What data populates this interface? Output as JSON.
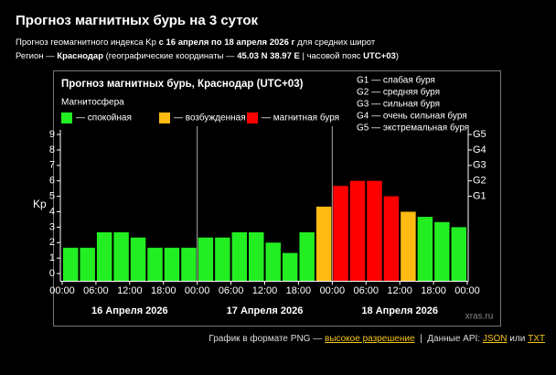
{
  "header": {
    "title": "Прогноз магнитных бурь на 3 суток",
    "line1": [
      "Прогноз геомагнитного индекса Kp ",
      "с 16 апреля по 18 апреля 2026 г",
      " для средних широт"
    ],
    "line2": [
      "Регион — ",
      "Краснодар",
      " (географические координаты — ",
      "45.03 N 38.97 E",
      " | часовой пояс ",
      "UTC+03",
      ")"
    ]
  },
  "chart_data": {
    "type": "bar",
    "title": "Прогноз магнитных бурь, Краснодар (UTC+03)",
    "legend_title": "Магнитосфера",
    "legend": [
      {
        "name": "— спокойная",
        "color": "#22ee22"
      },
      {
        "name": "— возбужденная",
        "color": "#ffbb11"
      },
      {
        "name": "— магнитная буря",
        "color": "#ff0000"
      }
    ],
    "g_legend": [
      "G1 — слабая буря",
      "G2 — средняя буря",
      "G3 — сильная буря",
      "G4 — очень сильная буря",
      "G5 — экстремальная буря"
    ],
    "y_label": "Kp",
    "x": [
      0,
      3,
      6,
      9,
      12,
      15,
      18,
      21,
      24,
      27,
      30,
      33,
      36,
      39,
      42,
      45,
      48,
      51,
      54,
      57,
      60,
      63,
      66,
      69
    ],
    "values": [
      1.67,
      1.67,
      2.67,
      2.67,
      2.33,
      1.67,
      1.67,
      1.67,
      2.33,
      2.33,
      2.67,
      2.67,
      2.0,
      1.33,
      2.67,
      4.33,
      5.67,
      6.0,
      6.0,
      5.0,
      4.0,
      3.67,
      3.33,
      3.0
    ],
    "colors": [
      "#22ee22",
      "#22ee22",
      "#22ee22",
      "#22ee22",
      "#22ee22",
      "#22ee22",
      "#22ee22",
      "#22ee22",
      "#22ee22",
      "#22ee22",
      "#22ee22",
      "#22ee22",
      "#22ee22",
      "#22ee22",
      "#22ee22",
      "#ffbb11",
      "#ff0000",
      "#ff0000",
      "#ff0000",
      "#ff0000",
      "#ffbb11",
      "#22ee22",
      "#22ee22",
      "#22ee22"
    ],
    "xlim": [
      0,
      72
    ],
    "xticks": [
      {
        "value": 0,
        "label": "00:00"
      },
      {
        "value": 6,
        "label": "06:00"
      },
      {
        "value": 12,
        "label": "12:00"
      },
      {
        "value": 18,
        "label": "18:00"
      },
      {
        "value": 24,
        "label": "00:00"
      },
      {
        "value": 30,
        "label": "06:00"
      },
      {
        "value": 36,
        "label": "12:00"
      },
      {
        "value": 42,
        "label": "18:00"
      },
      {
        "value": 48,
        "label": "00:00"
      },
      {
        "value": 54,
        "label": "06:00"
      },
      {
        "value": 60,
        "label": "12:00"
      },
      {
        "value": 66,
        "label": "18:00"
      },
      {
        "value": 72,
        "label": "00:00"
      }
    ],
    "days": [
      "16 Апреля 2026",
      "17 Апреля 2026",
      "18 Апреля 2026"
    ],
    "ylim": [
      -0.5,
      9.3
    ],
    "yticks": [
      0,
      1,
      2,
      3,
      4,
      5,
      6,
      7,
      8,
      9
    ],
    "y2lim": [
      -0.5,
      9.3
    ],
    "y2ticks": [
      {
        "value": 5,
        "label": "G1"
      },
      {
        "value": 6,
        "label": "G2"
      },
      {
        "value": 7,
        "label": "G3"
      },
      {
        "value": 8,
        "label": "G4"
      },
      {
        "value": 9,
        "label": "G5"
      }
    ],
    "watermark": "xras.ru"
  },
  "footer": {
    "text1": "График в формате PNG — ",
    "link1": "высокое разрешение",
    "sep": "  |  ",
    "text2": "Данные API: ",
    "link2": "JSON",
    "text3": " или ",
    "link3": "TXT"
  }
}
